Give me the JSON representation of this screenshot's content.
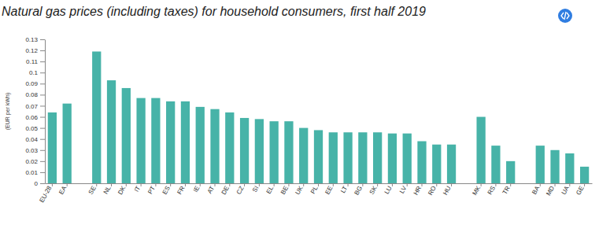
{
  "chart_data": {
    "type": "bar",
    "title": "Natural gas prices (including taxes) for household consumers, first half 2019",
    "y_label": "(EUR per kWh)",
    "categories": [
      "EU-28",
      "EA",
      null,
      "SE",
      "NL",
      "DK",
      "IT",
      "PT",
      "ES",
      "FR",
      "IE",
      "AT",
      "DE",
      "CZ",
      "SI",
      "EL",
      "BE",
      "UK",
      "PL",
      "EE",
      "LT",
      "BG",
      "SK",
      "LU",
      "LV",
      "HR",
      "RO",
      "HU",
      null,
      "MK",
      "RS",
      "TR",
      null,
      "BA",
      "MD",
      "UA",
      "GE"
    ],
    "values": [
      0.064,
      0.072,
      null,
      0.119,
      0.093,
      0.086,
      0.077,
      0.077,
      0.074,
      0.074,
      0.069,
      0.067,
      0.064,
      0.059,
      0.058,
      0.056,
      0.056,
      0.05,
      0.048,
      0.046,
      0.046,
      0.046,
      0.046,
      0.045,
      0.045,
      0.038,
      0.035,
      0.035,
      null,
      0.06,
      0.034,
      0.02,
      null,
      0.034,
      0.03,
      0.027,
      0.015
    ],
    "color": "#47b3a8",
    "ylim": [
      0,
      0.13
    ],
    "yticks": [
      0,
      0.01,
      0.02,
      0.03,
      0.04,
      0.05,
      0.06,
      0.07,
      0.08,
      0.09,
      0.1,
      0.11,
      0.12,
      0.13
    ],
    "grid": false
  }
}
